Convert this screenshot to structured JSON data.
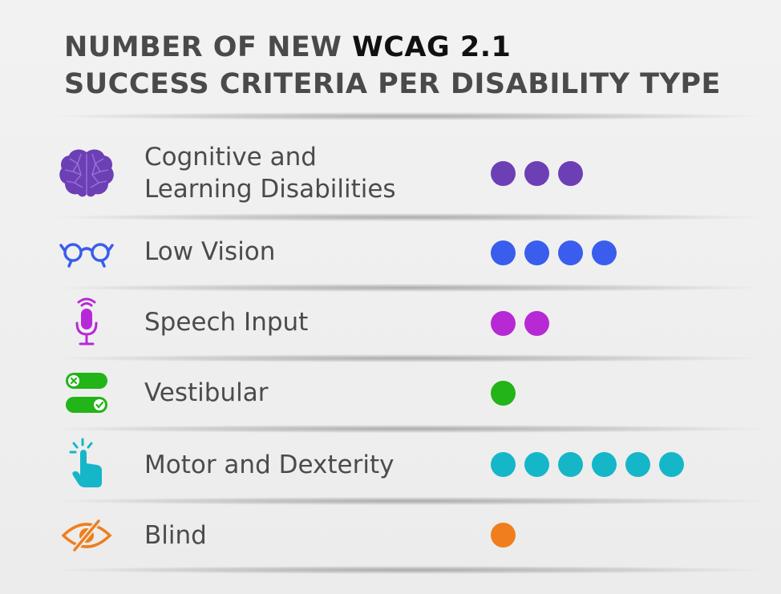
{
  "header": {
    "title_line1_prefix": "NUMBER OF NEW ",
    "title_line1_bold": "WCAG 2.1",
    "title_line2": "SUCCESS CRITERIA PER DISABILITY TYPE"
  },
  "rows": [
    {
      "label": "Cognitive and\nLearning Disabilities",
      "icon": "brain-icon",
      "color": "#6d3fb5",
      "count": 3
    },
    {
      "label": "Low Vision",
      "icon": "glasses-icon",
      "color": "#3a5ded",
      "count": 4
    },
    {
      "label": "Speech Input",
      "icon": "microphone-icon",
      "color": "#b829d6",
      "count": 2
    },
    {
      "label": "Vestibular",
      "icon": "toggle-switches-icon",
      "color": "#22b418",
      "count": 1
    },
    {
      "label": "Motor and Dexterity",
      "icon": "pointing-hand-icon",
      "color": "#16b6c9",
      "count": 6
    },
    {
      "label": "Blind",
      "icon": "eye-slash-icon",
      "color": "#f07e1d",
      "count": 1
    }
  ],
  "chart_data": {
    "type": "bar",
    "title": "NUMBER OF NEW WCAG 2.1 SUCCESS CRITERIA PER DISABILITY TYPE",
    "categories": [
      "Cognitive and Learning Disabilities",
      "Low Vision",
      "Speech Input",
      "Vestibular",
      "Motor and Dexterity",
      "Blind"
    ],
    "values": [
      3,
      4,
      2,
      1,
      6,
      1
    ]
  }
}
